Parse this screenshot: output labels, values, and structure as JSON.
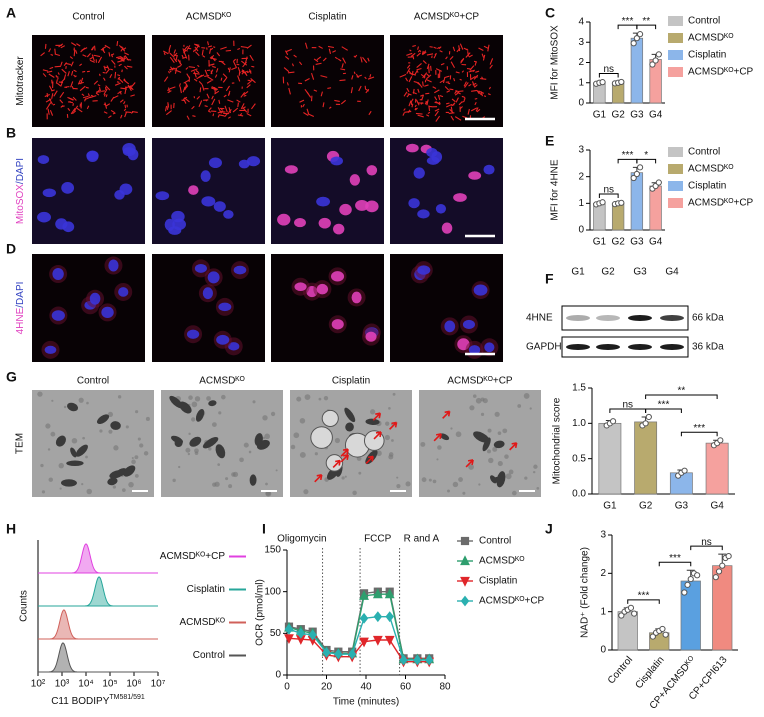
{
  "figure": {
    "panel_labels": [
      "A",
      "B",
      "C",
      "D",
      "E",
      "F",
      "G",
      "H",
      "I",
      "J"
    ],
    "image_columns": [
      "Control",
      "ACMSDᴷᴼ",
      "Cisplatin",
      "ACMSDᴷᴼ+CP"
    ],
    "image_rows": [
      [
        "Mitotracker"
      ],
      [
        "MitoSOX",
        "/DAPI"
      ],
      [
        "4HNE",
        "/DAPI"
      ]
    ],
    "tem_label": "TEM",
    "blot": {
      "lanes": [
        "G1",
        "G2",
        "G3",
        "G4"
      ],
      "rows": [
        {
          "protein": "4HNE",
          "size": "66 kDa"
        },
        {
          "protein": "GAPDH",
          "size": "36 kDa"
        }
      ]
    }
  },
  "chart_data": [
    {
      "type": "bar",
      "ylabel": "MFI for MitoSOX",
      "categories": [
        "G1",
        "G2",
        "G3",
        "G4"
      ],
      "values": [
        1.0,
        1.0,
        3.2,
        2.15
      ],
      "errors": [
        0.05,
        0.06,
        0.25,
        0.25
      ],
      "points": [
        [
          0.95,
          1.0,
          1.03
        ],
        [
          0.97,
          1.0,
          1.04
        ],
        [
          2.95,
          3.2,
          3.4
        ],
        [
          1.9,
          2.1,
          2.4
        ]
      ],
      "colors": [
        "#c4c4c4",
        "#b8aa6e",
        "#8cb6ea",
        "#f5a19e"
      ],
      "legend": [
        "Control",
        "ACMSDᴷᴼ",
        "Cisplatin",
        "ACMSDᴷᴼ+CP"
      ],
      "ylim": [
        0,
        4
      ],
      "yticks": [
        0,
        1,
        2,
        3,
        4
      ],
      "comparisons": [
        {
          "pair": [
            "G1",
            "G2"
          ],
          "label": "ns"
        },
        {
          "pair": [
            "G2",
            "G3"
          ],
          "label": "***"
        },
        {
          "pair": [
            "G3",
            "G4"
          ],
          "label": "**"
        }
      ]
    },
    {
      "type": "bar",
      "ylabel": "MFI for 4HNE",
      "categories": [
        "G1",
        "G2",
        "G3",
        "G4"
      ],
      "values": [
        1.0,
        1.0,
        2.15,
        1.65
      ],
      "errors": [
        0.05,
        0.04,
        0.2,
        0.12
      ],
      "points": [
        [
          0.96,
          1.0,
          1.04
        ],
        [
          0.97,
          1.0,
          1.02
        ],
        [
          1.95,
          2.1,
          2.35
        ],
        [
          1.55,
          1.65,
          1.78
        ]
      ],
      "colors": [
        "#c4c4c4",
        "#b8aa6e",
        "#8cb6ea",
        "#f5a19e"
      ],
      "legend": [
        "Control",
        "ACMSDᴷᴼ",
        "Cisplatin",
        "ACMSDᴷᴼ+CP"
      ],
      "ylim": [
        0,
        3
      ],
      "yticks": [
        0,
        1,
        2,
        3
      ],
      "comparisons": [
        {
          "pair": [
            "G1",
            "G2"
          ],
          "label": "ns"
        },
        {
          "pair": [
            "G2",
            "G3"
          ],
          "label": "***"
        },
        {
          "pair": [
            "G3",
            "G4"
          ],
          "label": "*"
        }
      ]
    },
    {
      "type": "bar",
      "ylabel": "Mitochondrial score",
      "categories": [
        "G1",
        "G2",
        "G3",
        "G4"
      ],
      "values": [
        1.0,
        1.02,
        0.3,
        0.72
      ],
      "errors": [
        0.04,
        0.07,
        0.04,
        0.04
      ],
      "points": [
        [
          0.97,
          1.0,
          1.03
        ],
        [
          0.97,
          1.0,
          1.09
        ],
        [
          0.26,
          0.3,
          0.33
        ],
        [
          0.69,
          0.72,
          0.76
        ]
      ],
      "colors": [
        "#c4c4c4",
        "#b8aa6e",
        "#8cb6ea",
        "#f5a19e"
      ],
      "ylim": [
        0,
        1.5
      ],
      "yticks": [
        {
          "value": 0,
          "label": "0.0"
        },
        {
          "value": 0.5,
          "label": "0.5"
        },
        {
          "value": 1,
          "label": "1.0"
        },
        {
          "value": 1.5,
          "label": "1.5"
        }
      ],
      "comparisons": [
        {
          "pair": [
            "G1",
            "G2"
          ],
          "label": "ns"
        },
        {
          "pair": [
            "G2",
            "G3"
          ],
          "label": "***"
        },
        {
          "pair": [
            "G3",
            "G4"
          ],
          "label": "***"
        },
        {
          "pair": [
            "G2",
            "G4"
          ],
          "label": "**"
        }
      ]
    },
    {
      "type": "density",
      "ylabel": "Counts",
      "xlabel": "C11 BODIPY",
      "xlabel_sup": "TM581/591",
      "log_x": true,
      "xlim": [
        100,
        10000000
      ],
      "xticks": [
        {
          "value": 100,
          "label": "10²"
        },
        {
          "value": 1000,
          "label": "10³"
        },
        {
          "value": 10000,
          "label": "10⁴"
        },
        {
          "value": 100000,
          "label": "10⁵"
        },
        {
          "value": 1000000,
          "label": "10⁶"
        },
        {
          "value": 10000000,
          "label": "10⁷"
        }
      ],
      "series": [
        {
          "name": "ACMSDᴷᴼ+CP",
          "color": "#e040e0",
          "peak": 10000
        },
        {
          "name": "Cisplatin",
          "color": "#26a69a",
          "peak": 35000
        },
        {
          "name": "ACMSDᴷᴼ",
          "color": "#d0605a",
          "peak": 1200
        },
        {
          "name": "Control",
          "color": "#555555",
          "peak": 1100
        }
      ]
    },
    {
      "type": "line",
      "ylabel": "OCR (pmol/ml)",
      "xlabel": "Time (minutes)",
      "x": [
        1,
        7,
        13,
        20,
        26,
        33,
        39,
        46,
        52,
        59,
        66,
        72
      ],
      "xlim": [
        0,
        80
      ],
      "xticks": [
        0,
        20,
        40,
        60,
        80
      ],
      "ylim": [
        0,
        150
      ],
      "yticks": [
        0,
        50,
        100,
        150
      ],
      "injections": [
        {
          "label": "Oligomycin",
          "x": 18
        },
        {
          "label": "FCCP",
          "x": 37
        },
        {
          "label": "R and A",
          "x": 57
        }
      ],
      "series": [
        {
          "name": "Control",
          "color": "#6b6b6b",
          "marker": "square",
          "values": [
            58,
            55,
            52,
            30,
            28,
            28,
            98,
            100,
            100,
            20,
            20,
            20
          ]
        },
        {
          "name": "ACMSDᴷᴼ",
          "color": "#2e9e6e",
          "marker": "triangle",
          "values": [
            57,
            53,
            50,
            28,
            26,
            26,
            95,
            97,
            97,
            19,
            19,
            19
          ]
        },
        {
          "name": "Cisplatin",
          "color": "#e0262a",
          "marker": "triangle-down",
          "values": [
            44,
            43,
            42,
            24,
            22,
            22,
            40,
            42,
            42,
            16,
            16,
            16
          ]
        },
        {
          "name": "ACMSDᴷᴼ+CP",
          "color": "#2ab0b0",
          "marker": "diamond",
          "values": [
            55,
            50,
            48,
            27,
            25,
            25,
            68,
            70,
            70,
            18,
            18,
            18
          ]
        }
      ]
    },
    {
      "type": "bar",
      "ylabel": "NAD⁺ (Fold change)",
      "categories": [
        "Control",
        "Cisplatin",
        "CP+ACMSDᴷᴼ",
        "CP+CPI613"
      ],
      "values": [
        1.0,
        0.45,
        1.8,
        2.2
      ],
      "errors": [
        0.1,
        0.1,
        0.28,
        0.3
      ],
      "points": [
        [
          0.9,
          1.0,
          1.05,
          1.1,
          0.95
        ],
        [
          0.35,
          0.45,
          0.5,
          0.55,
          0.4
        ],
        [
          1.5,
          1.7,
          1.85,
          2.0,
          1.95
        ],
        [
          1.9,
          2.05,
          2.2,
          2.4,
          2.45
        ]
      ],
      "colors": [
        "#c4c4c4",
        "#b8aa6e",
        "#5aa0e0",
        "#f08a80"
      ],
      "ylim": [
        0,
        3
      ],
      "yticks": [
        0,
        1,
        2,
        3
      ],
      "comparisons": [
        {
          "pair": [
            "Control",
            "Cisplatin"
          ],
          "label": "***"
        },
        {
          "pair": [
            "Cisplatin",
            "CP+ACMSDᴷᴼ"
          ],
          "label": "***"
        },
        {
          "pair": [
            "CP+ACMSDᴷᴼ",
            "CP+CPI613"
          ],
          "label": "ns"
        }
      ]
    }
  ]
}
